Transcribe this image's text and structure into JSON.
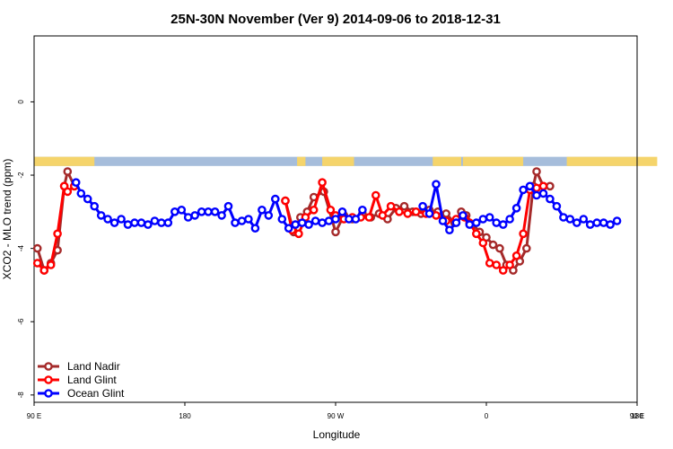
{
  "chart_data": {
    "type": "line",
    "title": "25N-30N November (Ver 9)   2014-09-06 to 2018-12-31",
    "xlabel": "Longitude",
    "ylabel": "XCO2 - MLO trend (ppm)",
    "xlim": [
      90,
      450
    ],
    "ylim": [
      -8.2,
      1.8
    ],
    "x_ticks": [
      {
        "value": 90,
        "label": "90 E"
      },
      {
        "value": 180,
        "label": "180"
      },
      {
        "value": 270,
        "label": "90 W"
      },
      {
        "value": 360,
        "label": "0"
      },
      {
        "value": 450,
        "label": "90 E"
      },
      {
        "value": 540,
        "label": "180"
      }
    ],
    "y_ticks": [
      {
        "value": 0,
        "label": "0"
      },
      {
        "value": -2,
        "label": "-2"
      },
      {
        "value": -4,
        "label": "-4"
      },
      {
        "value": -6,
        "label": "-6"
      },
      {
        "value": -8,
        "label": "-8"
      }
    ],
    "grid": false,
    "legend_position": "bottom-left",
    "land_ocean_strip": {
      "y_range": [
        -1.75,
        -1.5
      ],
      "ocean_color": "#a6bddb",
      "land_color": "#f5d46b",
      "land_segments": [
        [
          90,
          126
        ],
        [
          247,
          252
        ],
        [
          262,
          281
        ],
        [
          328,
          345
        ],
        [
          346,
          382
        ],
        [
          408,
          462
        ],
        [
          484,
          490
        ]
      ]
    },
    "series": [
      {
        "name": "Land Nadir",
        "color": "#a52a2a",
        "points": [
          [
            92,
            -4.0
          ],
          [
            96,
            -4.6
          ],
          [
            100,
            -4.4
          ],
          [
            104,
            -4.05
          ],
          [
            108,
            -2.3
          ],
          [
            110,
            -1.9
          ],
          [
            114,
            -2.3
          ],
          [
            240,
            -2.7
          ],
          [
            245,
            -3.55
          ],
          [
            249,
            -3.15
          ],
          [
            253,
            -3.0
          ],
          [
            257,
            -2.6
          ],
          [
            263,
            -2.45
          ],
          [
            270,
            -3.55
          ],
          [
            275,
            -3.1
          ],
          [
            280,
            -3.2
          ],
          [
            286,
            -3.05
          ],
          [
            291,
            -3.15
          ],
          [
            296,
            -3.05
          ],
          [
            301,
            -3.2
          ],
          [
            306,
            -2.9
          ],
          [
            311,
            -2.85
          ],
          [
            316,
            -3.0
          ],
          [
            321,
            -3.05
          ],
          [
            326,
            -2.95
          ],
          [
            331,
            -3.0
          ],
          [
            336,
            -3.05
          ],
          [
            341,
            -3.3
          ],
          [
            345,
            -3.0
          ],
          [
            348,
            -3.1
          ],
          [
            352,
            -3.35
          ],
          [
            356,
            -3.55
          ],
          [
            360,
            -3.7
          ],
          [
            364,
            -3.9
          ],
          [
            368,
            -4.0
          ],
          [
            372,
            -4.45
          ],
          [
            376,
            -4.6
          ],
          [
            380,
            -4.35
          ],
          [
            384,
            -4.0
          ],
          [
            388,
            -2.3
          ],
          [
            390,
            -1.9
          ],
          [
            394,
            -2.3
          ],
          [
            398,
            -2.3
          ]
        ]
      },
      {
        "name": "Land Glint",
        "color": "#ff0000",
        "points": [
          [
            92,
            -4.4
          ],
          [
            96,
            -4.6
          ],
          [
            100,
            -4.45
          ],
          [
            104,
            -3.6
          ],
          [
            108,
            -2.3
          ],
          [
            110,
            -2.45
          ],
          [
            114,
            -2.3
          ],
          [
            240,
            -2.7
          ],
          [
            244,
            -3.5
          ],
          [
            248,
            -3.6
          ],
          [
            252,
            -3.15
          ],
          [
            257,
            -2.95
          ],
          [
            262,
            -2.2
          ],
          [
            267,
            -2.95
          ],
          [
            270,
            -3.1
          ],
          [
            275,
            -3.2
          ],
          [
            280,
            -3.15
          ],
          [
            285,
            -3.15
          ],
          [
            290,
            -3.15
          ],
          [
            294,
            -2.55
          ],
          [
            298,
            -3.1
          ],
          [
            303,
            -2.85
          ],
          [
            308,
            -3.0
          ],
          [
            313,
            -3.05
          ],
          [
            318,
            -3.0
          ],
          [
            324,
            -3.05
          ],
          [
            330,
            -3.1
          ],
          [
            336,
            -3.25
          ],
          [
            342,
            -3.2
          ],
          [
            347,
            -3.15
          ],
          [
            350,
            -3.3
          ],
          [
            354,
            -3.6
          ],
          [
            358,
            -3.85
          ],
          [
            362,
            -4.4
          ],
          [
            366,
            -4.45
          ],
          [
            370,
            -4.6
          ],
          [
            374,
            -4.45
          ],
          [
            378,
            -4.2
          ],
          [
            382,
            -3.6
          ],
          [
            386,
            -2.4
          ],
          [
            390,
            -2.35
          ],
          [
            394,
            -2.3
          ]
        ]
      },
      {
        "name": "Ocean Glint",
        "color": "#0000ff",
        "points": [
          [
            115,
            -2.2
          ],
          [
            118,
            -2.5
          ],
          [
            122,
            -2.65
          ],
          [
            126,
            -2.85
          ],
          [
            130,
            -3.1
          ],
          [
            134,
            -3.2
          ],
          [
            138,
            -3.3
          ],
          [
            142,
            -3.2
          ],
          [
            146,
            -3.35
          ],
          [
            150,
            -3.3
          ],
          [
            154,
            -3.3
          ],
          [
            158,
            -3.35
          ],
          [
            162,
            -3.25
          ],
          [
            166,
            -3.3
          ],
          [
            170,
            -3.3
          ],
          [
            174,
            -3.0
          ],
          [
            178,
            -2.95
          ],
          [
            182,
            -3.15
          ],
          [
            186,
            -3.1
          ],
          [
            190,
            -3.0
          ],
          [
            194,
            -3.0
          ],
          [
            198,
            -3.0
          ],
          [
            202,
            -3.1
          ],
          [
            206,
            -2.85
          ],
          [
            210,
            -3.3
          ],
          [
            214,
            -3.25
          ],
          [
            218,
            -3.2
          ],
          [
            222,
            -3.45
          ],
          [
            226,
            -2.95
          ],
          [
            230,
            -3.1
          ],
          [
            234,
            -2.65
          ],
          [
            238,
            -3.2
          ],
          [
            242,
            -3.45
          ],
          [
            246,
            -3.35
          ],
          [
            250,
            -3.3
          ],
          [
            254,
            -3.35
          ],
          [
            258,
            -3.25
          ],
          [
            262,
            -3.3
          ],
          [
            266,
            -3.25
          ],
          [
            270,
            -3.2
          ],
          [
            274,
            -3.0
          ],
          [
            278,
            -3.2
          ],
          [
            282,
            -3.2
          ],
          [
            286,
            -2.95
          ],
          [
            322,
            -2.85
          ],
          [
            326,
            -3.05
          ],
          [
            330,
            -2.25
          ],
          [
            334,
            -3.25
          ],
          [
            338,
            -3.5
          ],
          [
            342,
            -3.3
          ],
          [
            346,
            -3.1
          ],
          [
            350,
            -3.35
          ],
          [
            354,
            -3.3
          ],
          [
            358,
            -3.2
          ],
          [
            362,
            -3.15
          ],
          [
            366,
            -3.3
          ],
          [
            370,
            -3.35
          ],
          [
            374,
            -3.2
          ],
          [
            378,
            -2.9
          ],
          [
            382,
            -2.4
          ],
          [
            386,
            -2.3
          ],
          [
            390,
            -2.55
          ],
          [
            394,
            -2.5
          ],
          [
            398,
            -2.65
          ],
          [
            402,
            -2.85
          ],
          [
            406,
            -3.15
          ],
          [
            410,
            -3.2
          ],
          [
            414,
            -3.3
          ],
          [
            418,
            -3.2
          ],
          [
            422,
            -3.35
          ],
          [
            426,
            -3.3
          ],
          [
            430,
            -3.3
          ],
          [
            434,
            -3.35
          ],
          [
            438,
            -3.25
          ]
        ]
      }
    ]
  }
}
